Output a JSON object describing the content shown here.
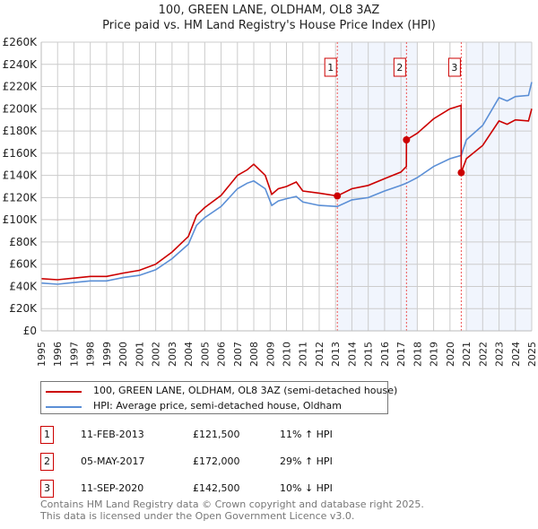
{
  "chart_data": {
    "type": "line",
    "title": "100, GREEN LANE, OLDHAM, OL8 3AZ",
    "subtitle": "Price paid vs. HM Land Registry's House Price Index (HPI)",
    "xlabel": "",
    "ylabel": "",
    "xlim": [
      1995,
      2025
    ],
    "ylim": [
      0,
      260000
    ],
    "grid": true,
    "yticks": [
      "£0",
      "£20K",
      "£40K",
      "£60K",
      "£80K",
      "£100K",
      "£120K",
      "£140K",
      "£160K",
      "£180K",
      "£200K",
      "£220K",
      "£240K",
      "£260K"
    ],
    "xticks": [
      "1995",
      "1996",
      "1997",
      "1998",
      "1999",
      "2000",
      "2001",
      "2002",
      "2003",
      "2004",
      "2005",
      "2006",
      "2007",
      "2008",
      "2009",
      "2010",
      "2011",
      "2012",
      "2013",
      "2014",
      "2015",
      "2016",
      "2017",
      "2018",
      "2019",
      "2020",
      "2021",
      "2022",
      "2023",
      "2024",
      "2025"
    ],
    "series": [
      {
        "name": "100, GREEN LANE, OLDHAM, OL8 3AZ (semi-detached house)",
        "color": "#cc0000",
        "x": [
          1995,
          1996,
          1997,
          1998,
          1999,
          2000,
          2001,
          2002,
          2003,
          2004,
          2004.5,
          2005,
          2006,
          2007,
          2007.6,
          2008,
          2008.7,
          2009.1,
          2009.5,
          2010,
          2010.6,
          2011,
          2012,
          2013.11,
          2014,
          2015,
          2016,
          2017,
          2017.33,
          2017.34,
          2018,
          2019,
          2020,
          2020.68,
          2020.69,
          2021,
          2022,
          2023,
          2023.5,
          2024,
          2024.8,
          2025
        ],
        "y": [
          47000,
          46000,
          47500,
          49000,
          49000,
          52000,
          54500,
          60000,
          71000,
          85000,
          104000,
          111000,
          122000,
          140000,
          145000,
          150000,
          140000,
          123000,
          128000,
          130000,
          134000,
          126000,
          124000,
          121500,
          128000,
          131000,
          137000,
          143000,
          148000,
          172000,
          178000,
          191000,
          200000,
          203000,
          142500,
          155000,
          167000,
          189000,
          186000,
          190000,
          189000,
          200000
        ]
      },
      {
        "name": "HPI: Average price, semi-detached house, Oldham",
        "color": "#5b8fd6",
        "x": [
          1995,
          1996,
          1997,
          1998,
          1999,
          2000,
          2001,
          2002,
          2003,
          2004,
          2004.5,
          2005,
          2006,
          2007,
          2007.6,
          2008,
          2008.7,
          2009.1,
          2009.5,
          2010,
          2010.6,
          2011,
          2012,
          2013.11,
          2014,
          2015,
          2016,
          2017,
          2017.34,
          2018,
          2019,
          2020,
          2020.69,
          2021,
          2022,
          2023,
          2023.5,
          2024,
          2024.8,
          2025
        ],
        "y": [
          43000,
          42000,
          43500,
          45000,
          45000,
          48000,
          50000,
          55000,
          65000,
          78000,
          95000,
          102000,
          112000,
          128000,
          133000,
          135000,
          128000,
          113000,
          117000,
          119000,
          121000,
          116000,
          113000,
          112000,
          118000,
          120000,
          126000,
          131000,
          133000,
          138000,
          148000,
          155000,
          158000,
          172000,
          185000,
          210000,
          207000,
          211000,
          212000,
          224000
        ]
      }
    ],
    "sales": [
      {
        "label": "1",
        "x": 2013.11,
        "y": 121500
      },
      {
        "label": "2",
        "x": 2017.34,
        "y": 172000
      },
      {
        "label": "3",
        "x": 2020.69,
        "y": 142500
      }
    ]
  },
  "legend": {
    "property": "100, GREEN LANE, OLDHAM, OL8 3AZ (semi-detached house)",
    "hpi": "HPI: Average price, semi-detached house, Oldham"
  },
  "transactions": [
    {
      "num": "1",
      "date": "11-FEB-2013",
      "price": "£121,500",
      "delta": "11% ↑ HPI"
    },
    {
      "num": "2",
      "date": "05-MAY-2017",
      "price": "£172,000",
      "delta": "29% ↑ HPI"
    },
    {
      "num": "3",
      "date": "11-SEP-2020",
      "price": "£142,500",
      "delta": "10% ↓ HPI"
    }
  ],
  "footer": {
    "line1": "Contains HM Land Registry data © Crown copyright and database right 2025.",
    "line2": "This data is licensed under the Open Government Licence v3.0."
  }
}
